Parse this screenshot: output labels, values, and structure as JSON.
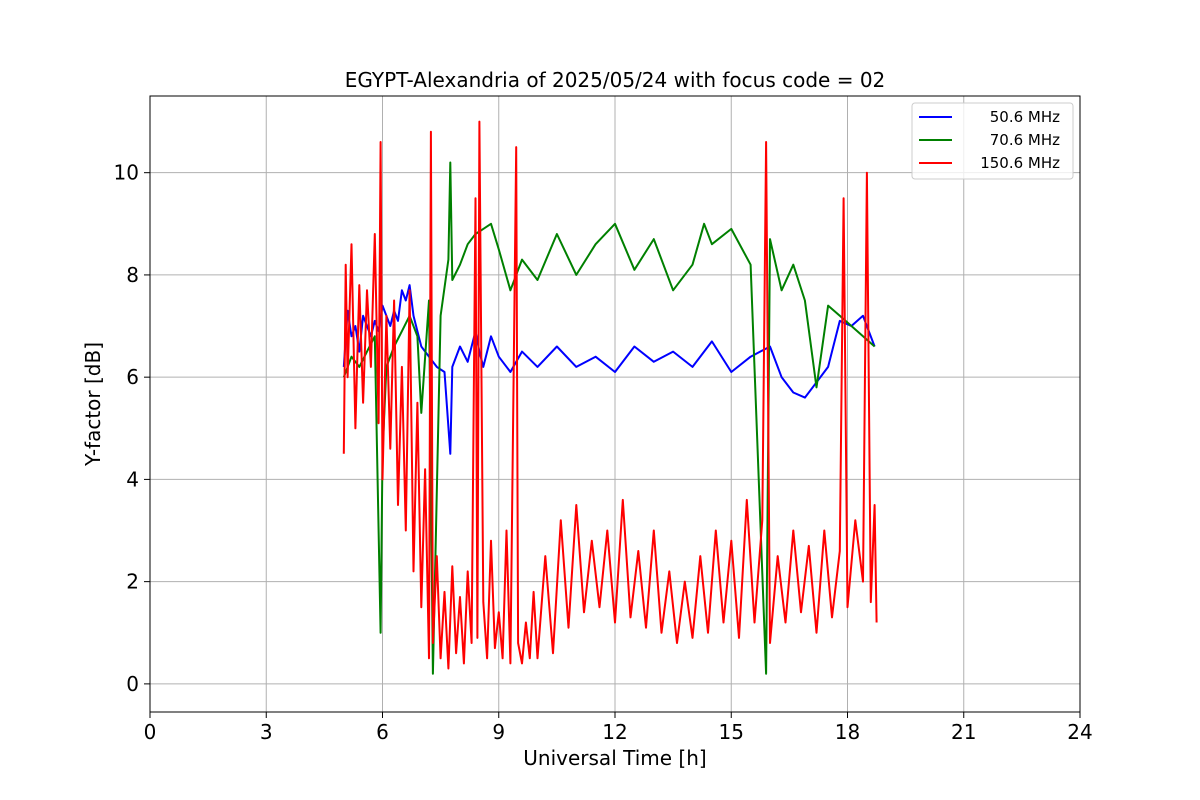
{
  "chart_data": {
    "type": "line",
    "title": "EGYPT-Alexandria of 2025/05/24 with focus code = 02",
    "xlabel": "Universal Time [h]",
    "ylabel": "Y-factor [dB]",
    "xlim": [
      0,
      24
    ],
    "ylim": [
      -0.55,
      11.5
    ],
    "xticks": [
      0,
      3,
      6,
      9,
      12,
      15,
      18,
      21,
      24
    ],
    "yticks": [
      0,
      2,
      4,
      6,
      8,
      10
    ],
    "grid": true,
    "legend_position": "top-right",
    "series": [
      {
        "name": "50.6 MHz",
        "color": "#0000ff",
        "x": [
          5.0,
          5.1,
          5.2,
          5.3,
          5.4,
          5.5,
          5.6,
          5.7,
          5.8,
          5.9,
          6.0,
          6.1,
          6.2,
          6.3,
          6.4,
          6.5,
          6.6,
          6.7,
          6.8,
          6.9,
          7.0,
          7.2,
          7.4,
          7.6,
          7.75,
          7.8,
          8.0,
          8.2,
          8.4,
          8.5,
          8.6,
          8.8,
          9.0,
          9.3,
          9.6,
          10.0,
          10.5,
          11.0,
          11.5,
          12.0,
          12.5,
          13.0,
          13.5,
          14.0,
          14.5,
          15.0,
          15.5,
          16.0,
          16.3,
          16.6,
          16.9,
          17.2,
          17.5,
          17.8,
          18.1,
          18.4,
          18.7
        ],
        "values": [
          6.2,
          7.3,
          6.8,
          7.0,
          6.5,
          7.2,
          7.0,
          6.8,
          7.1,
          6.9,
          7.4,
          7.2,
          7.0,
          7.3,
          7.1,
          7.7,
          7.5,
          7.8,
          7.2,
          6.9,
          6.6,
          6.4,
          6.2,
          6.1,
          4.5,
          6.2,
          6.6,
          6.3,
          6.9,
          6.5,
          6.2,
          6.8,
          6.4,
          6.1,
          6.5,
          6.2,
          6.6,
          6.2,
          6.4,
          6.1,
          6.6,
          6.3,
          6.5,
          6.2,
          6.7,
          6.1,
          6.4,
          6.6,
          6.0,
          5.7,
          5.6,
          5.9,
          6.2,
          7.1,
          7.0,
          7.2,
          6.6
        ]
      },
      {
        "name": "70.6 MHz",
        "color": "#008000",
        "x": [
          5.0,
          5.2,
          5.4,
          5.6,
          5.8,
          5.95,
          6.0,
          6.1,
          6.3,
          6.5,
          6.7,
          6.9,
          7.0,
          7.2,
          7.3,
          7.5,
          7.7,
          7.75,
          7.8,
          8.0,
          8.2,
          8.4,
          8.6,
          8.8,
          9.0,
          9.3,
          9.6,
          10.0,
          10.5,
          11.0,
          11.5,
          12.0,
          12.5,
          13.0,
          13.5,
          14.0,
          14.3,
          14.5,
          15.0,
          15.5,
          15.9,
          16.0,
          16.3,
          16.6,
          16.9,
          17.2,
          17.5,
          17.8,
          18.1,
          18.4,
          18.7
        ],
        "values": [
          6.0,
          6.4,
          6.2,
          6.5,
          6.8,
          1.0,
          4.5,
          6.2,
          6.6,
          6.9,
          7.2,
          6.8,
          5.3,
          7.5,
          0.2,
          7.2,
          8.3,
          10.2,
          7.9,
          8.2,
          8.6,
          8.8,
          8.9,
          9.0,
          8.5,
          7.7,
          8.3,
          7.9,
          8.8,
          8.0,
          8.6,
          9.0,
          8.1,
          8.7,
          7.7,
          8.2,
          9.0,
          8.6,
          8.9,
          8.2,
          0.2,
          8.7,
          7.7,
          8.2,
          7.5,
          5.8,
          7.4,
          7.2,
          7.0,
          6.8,
          6.6
        ]
      },
      {
        "name": "150.6 MHz",
        "color": "#ff0000",
        "x": [
          5.0,
          5.05,
          5.1,
          5.2,
          5.3,
          5.4,
          5.5,
          5.6,
          5.7,
          5.8,
          5.9,
          5.95,
          6.0,
          6.1,
          6.2,
          6.3,
          6.4,
          6.5,
          6.6,
          6.7,
          6.8,
          6.9,
          7.0,
          7.1,
          7.2,
          7.25,
          7.3,
          7.4,
          7.5,
          7.6,
          7.7,
          7.8,
          7.9,
          8.0,
          8.1,
          8.2,
          8.3,
          8.4,
          8.45,
          8.5,
          8.6,
          8.7,
          8.8,
          8.9,
          9.0,
          9.1,
          9.2,
          9.3,
          9.45,
          9.5,
          9.6,
          9.7,
          9.8,
          9.9,
          10.0,
          10.2,
          10.4,
          10.6,
          10.8,
          11.0,
          11.2,
          11.4,
          11.6,
          11.8,
          12.0,
          12.2,
          12.4,
          12.6,
          12.8,
          13.0,
          13.2,
          13.4,
          13.6,
          13.8,
          14.0,
          14.2,
          14.4,
          14.6,
          14.8,
          15.0,
          15.2,
          15.4,
          15.6,
          15.8,
          15.9,
          16.0,
          16.2,
          16.4,
          16.6,
          16.8,
          17.0,
          17.2,
          17.4,
          17.6,
          17.8,
          17.9,
          18.0,
          18.2,
          18.4,
          18.5,
          18.6,
          18.7,
          18.75
        ],
        "values": [
          4.5,
          8.2,
          6.0,
          8.6,
          5.0,
          7.8,
          5.5,
          7.7,
          6.2,
          8.8,
          5.1,
          10.6,
          4.0,
          7.2,
          4.6,
          7.5,
          3.5,
          6.2,
          3.0,
          7.7,
          2.2,
          5.5,
          1.5,
          4.2,
          0.5,
          10.8,
          0.8,
          2.5,
          0.5,
          1.8,
          0.3,
          2.3,
          0.6,
          1.7,
          0.4,
          2.2,
          0.8,
          9.5,
          0.9,
          11.0,
          1.6,
          0.5,
          2.8,
          0.7,
          1.4,
          0.5,
          3.0,
          0.4,
          10.5,
          0.8,
          0.4,
          1.2,
          0.5,
          1.8,
          0.5,
          2.5,
          0.6,
          3.2,
          1.1,
          3.5,
          1.4,
          2.8,
          1.5,
          3.0,
          1.2,
          3.6,
          1.3,
          2.6,
          1.1,
          3.0,
          1.0,
          2.2,
          0.8,
          2.0,
          0.9,
          2.5,
          1.0,
          3.0,
          1.2,
          2.8,
          0.9,
          3.6,
          1.2,
          3.2,
          10.6,
          0.8,
          2.5,
          1.2,
          3.0,
          1.4,
          2.7,
          1.0,
          3.0,
          1.3,
          2.6,
          9.5,
          1.5,
          3.2,
          2.0,
          10.0,
          1.6,
          3.5,
          1.2
        ]
      }
    ]
  }
}
